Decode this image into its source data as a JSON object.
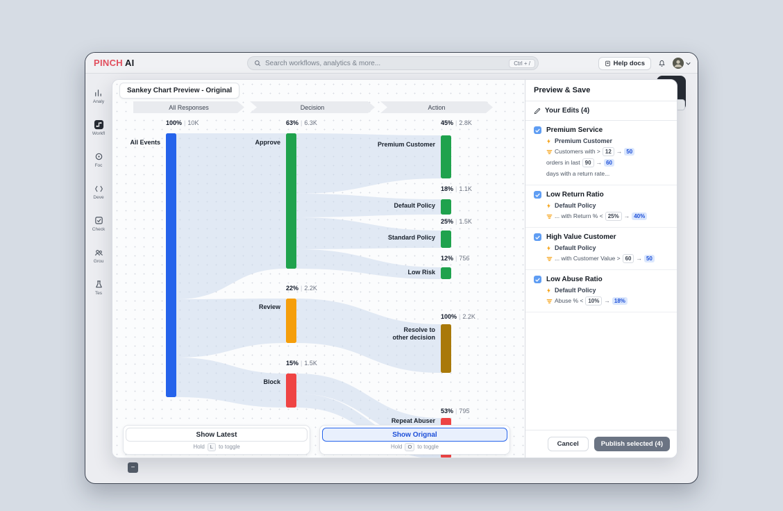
{
  "header": {
    "logo": {
      "primary": "PINCH",
      "secondary": "AI"
    },
    "search": {
      "placeholder": "Search workflows, analytics & more...",
      "shortcut": "Ctrl + /"
    },
    "help_button": "Help docs"
  },
  "sidebar": {
    "items": [
      {
        "label": "Analy",
        "icon": "analytics-icon",
        "active": false
      },
      {
        "label": "Workfl",
        "icon": "workflow-icon",
        "active": true
      },
      {
        "label": "Foc",
        "icon": "focus-icon",
        "active": false
      },
      {
        "label": "Deve",
        "icon": "develop-icon",
        "active": false
      },
      {
        "label": "Check",
        "icon": "checks-icon",
        "active": false
      },
      {
        "label": "Grou",
        "icon": "groups-icon",
        "active": false
      },
      {
        "label": "Tes",
        "icon": "tests-icon",
        "active": false
      }
    ]
  },
  "modal": {
    "title": "Sankey Chart Preview - Original",
    "toggles": [
      {
        "label": "Show Latest",
        "hold": "Hold",
        "key": "L",
        "suffix": "to toggle",
        "active": false
      },
      {
        "label": "Show Orignal",
        "hold": "Hold",
        "key": "O",
        "suffix": "to toggle",
        "active": true
      }
    ]
  },
  "chart_data": {
    "type": "sankey",
    "stages": [
      "All Responses",
      "Decision",
      "Action"
    ],
    "nodes": [
      {
        "id": "all_events",
        "label": "All Events",
        "stage": 0,
        "percent": "100%",
        "value": "10K",
        "color": "#2563eb"
      },
      {
        "id": "approve",
        "label": "Approve",
        "stage": 1,
        "percent": "63%",
        "value": "6.3K",
        "color": "#1fa24d"
      },
      {
        "id": "review",
        "label": "Review",
        "stage": 1,
        "percent": "22%",
        "value": "2.2K",
        "color": "#f59e0b"
      },
      {
        "id": "block",
        "label": "Block",
        "stage": 1,
        "percent": "15%",
        "value": "1.5K",
        "color": "#ef4444"
      },
      {
        "id": "premium_customer",
        "label": "Premium Customer",
        "stage": 2,
        "percent": "45%",
        "value": "2.8K",
        "color": "#1fa24d"
      },
      {
        "id": "default_policy",
        "label": "Default Policy",
        "stage": 2,
        "percent": "18%",
        "value": "1.1K",
        "color": "#1fa24d"
      },
      {
        "id": "standard_policy",
        "label": "Standard Policy",
        "stage": 2,
        "percent": "25%",
        "value": "1.5K",
        "color": "#1fa24d"
      },
      {
        "id": "low_risk",
        "label": "Low Risk",
        "stage": 2,
        "percent": "12%",
        "value": "756",
        "color": "#1fa24d"
      },
      {
        "id": "resolve_other",
        "label": "Resolve to other decision",
        "stage": 2,
        "percent": "100%",
        "value": "2.2K",
        "color": "#a9790a"
      },
      {
        "id": "repeat_abuser",
        "label": "Repeat Abuser",
        "stage": 2,
        "percent": "53%",
        "value": "795",
        "color": "#ef4444"
      }
    ],
    "links": [
      {
        "source": "all_events",
        "target": "approve",
        "value": "6.3K"
      },
      {
        "source": "all_events",
        "target": "review",
        "value": "2.2K"
      },
      {
        "source": "all_events",
        "target": "block",
        "value": "1.5K"
      },
      {
        "source": "approve",
        "target": "premium_customer",
        "value": "2.8K"
      },
      {
        "source": "approve",
        "target": "default_policy",
        "value": "1.1K"
      },
      {
        "source": "approve",
        "target": "standard_policy",
        "value": "1.5K"
      },
      {
        "source": "approve",
        "target": "low_risk",
        "value": "756"
      },
      {
        "source": "review",
        "target": "resolve_other",
        "value": "2.2K"
      },
      {
        "source": "block",
        "target": "repeat_abuser",
        "value": "795"
      }
    ]
  },
  "panel": {
    "title": "Preview & Save",
    "edits_header": "Your Edits (4)",
    "edits": [
      {
        "title": "Premium Service",
        "policy": "Premium Customer",
        "checked": true,
        "rule": [
          {
            "t": "text",
            "v": "Customers with >"
          },
          {
            "t": "old",
            "v": "12"
          },
          {
            "t": "arrow",
            "v": "→"
          },
          {
            "t": "new",
            "v": "50"
          },
          {
            "t": "text",
            "v": "orders in last"
          },
          {
            "t": "old",
            "v": "90"
          },
          {
            "t": "arrow",
            "v": "→"
          },
          {
            "t": "new",
            "v": "60"
          },
          {
            "t": "text",
            "v": "days with a return rate..."
          }
        ]
      },
      {
        "title": "Low Return Ratio",
        "policy": "Default Policy",
        "checked": true,
        "rule": [
          {
            "t": "text",
            "v": "... with Return % <"
          },
          {
            "t": "old",
            "v": "25%"
          },
          {
            "t": "arrow",
            "v": "→"
          },
          {
            "t": "new",
            "v": "40%"
          }
        ]
      },
      {
        "title": "High Value Customer",
        "policy": "Default Policy",
        "checked": true,
        "rule": [
          {
            "t": "text",
            "v": "... with Customer Value >"
          },
          {
            "t": "old",
            "v": "60"
          },
          {
            "t": "arrow",
            "v": "→"
          },
          {
            "t": "new",
            "v": "50"
          }
        ]
      },
      {
        "title": "Low Abuse Ratio",
        "policy": "Default Policy",
        "checked": true,
        "rule": [
          {
            "t": "text",
            "v": "Abuse % <"
          },
          {
            "t": "old",
            "v": "10%"
          },
          {
            "t": "arrow",
            "v": "→"
          },
          {
            "t": "new",
            "v": "18%"
          }
        ]
      }
    ],
    "cancel": "Cancel",
    "publish": "Publish selected (4)"
  }
}
